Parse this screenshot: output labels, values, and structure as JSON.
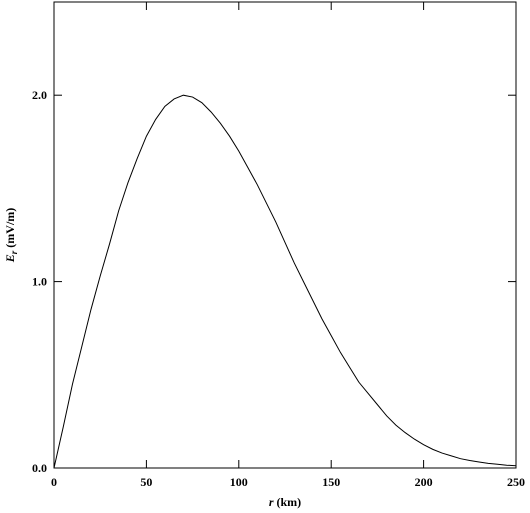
{
  "chart_data": {
    "type": "line",
    "xlabel": {
      "symbol": "r",
      "unit": "(km)"
    },
    "ylabel": {
      "symbol": "E",
      "subscript": "r",
      "unit": "(mV/m)"
    },
    "x": [
      0,
      5,
      10,
      15,
      20,
      25,
      30,
      35,
      40,
      45,
      50,
      55,
      60,
      65,
      70,
      75,
      80,
      85,
      90,
      95,
      100,
      105,
      110,
      115,
      120,
      125,
      130,
      135,
      140,
      145,
      150,
      155,
      160,
      165,
      170,
      175,
      180,
      185,
      190,
      195,
      200,
      205,
      210,
      215,
      220,
      225,
      230,
      235,
      240,
      245,
      250
    ],
    "series": [
      {
        "color": "#000000",
        "values": [
          0,
          0.22,
          0.45,
          0.65,
          0.85,
          1.03,
          1.2,
          1.38,
          1.53,
          1.66,
          1.78,
          1.87,
          1.94,
          1.98,
          2.0,
          1.99,
          1.96,
          1.91,
          1.85,
          1.78,
          1.7,
          1.61,
          1.52,
          1.42,
          1.32,
          1.21,
          1.1,
          1.0,
          0.9,
          0.8,
          0.71,
          0.62,
          0.54,
          0.46,
          0.4,
          0.34,
          0.28,
          0.23,
          0.19,
          0.155,
          0.125,
          0.1,
          0.08,
          0.065,
          0.05,
          0.04,
          0.032,
          0.025,
          0.02,
          0.015,
          0.012
        ]
      }
    ],
    "xlim": [
      0,
      250
    ],
    "xticks": [
      0,
      50,
      100,
      150,
      200,
      250
    ],
    "ylim": [
      0,
      2.5
    ],
    "yticks": [
      {
        "value": 0,
        "label": "0.0"
      },
      {
        "value": 1,
        "label": "1.0"
      },
      {
        "value": 2,
        "label": "2.0"
      }
    ],
    "grid": false
  }
}
